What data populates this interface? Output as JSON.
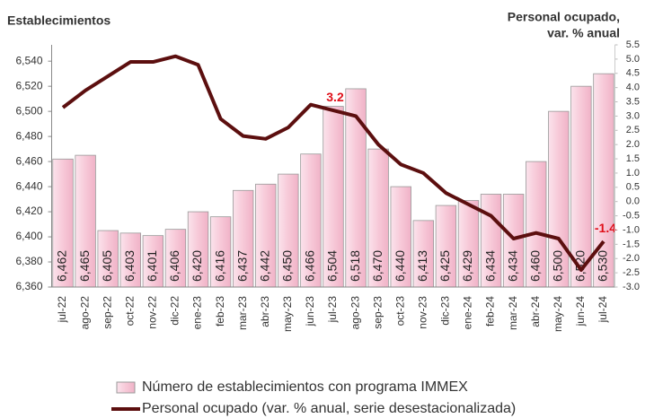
{
  "chart_data": {
    "type": "bar",
    "ylabel": "Establecimientos",
    "y2label": [
      "Personal ocupado,",
      "var.  %  anual"
    ],
    "categories": [
      "jul-22",
      "ago-22",
      "sep-22",
      "oct-22",
      "nov-22",
      "dic-22",
      "ene-23",
      "feb-23",
      "mar-23",
      "abr-23",
      "may-23",
      "jun-23",
      "jul-23",
      "ago-23",
      "sep-23",
      "oct-23",
      "nov-23",
      "dic-23",
      "ene-24",
      "feb-24",
      "mar-24",
      "abr-24",
      "may-24",
      "jun-24",
      "jul-24"
    ],
    "series": [
      {
        "name": "Número de establecimientos con programa IMMEX",
        "type": "bar",
        "color": "#f7c9d8",
        "values": [
          6462,
          6465,
          6405,
          6403,
          6401,
          6406,
          6420,
          6416,
          6437,
          6442,
          6450,
          6466,
          6504,
          6518,
          6470,
          6440,
          6413,
          6425,
          6429,
          6434,
          6434,
          6460,
          6500,
          6520,
          6530
        ],
        "value_labels": [
          "6,462",
          "6,465",
          "6,405",
          "6,403",
          "6,401",
          "6,406",
          "6,420",
          "6,416",
          "6,437",
          "6,442",
          "6,450",
          "6,466",
          "6,504",
          "6,518",
          "6,470",
          "6,440",
          "6,413",
          "6,425",
          "6,429",
          "6,434",
          "6,434",
          "6,460",
          "6,500",
          "6,520",
          "6,530"
        ]
      },
      {
        "name": "Personal ocupado (var. % anual, serie desestacionalizada)",
        "type": "line",
        "axis": "y2",
        "color": "#5c0f0f",
        "values": [
          3.3,
          3.9,
          4.4,
          4.9,
          4.9,
          5.1,
          4.8,
          2.9,
          2.3,
          2.2,
          2.6,
          3.4,
          3.2,
          3.0,
          2.0,
          1.3,
          1.0,
          0.3,
          -0.1,
          -0.5,
          -1.3,
          -1.1,
          -1.3,
          -2.4,
          -1.4
        ],
        "value_labels": [
          null,
          null,
          null,
          null,
          null,
          null,
          null,
          null,
          null,
          null,
          null,
          null,
          "3.2",
          null,
          null,
          null,
          null,
          null,
          null,
          null,
          null,
          null,
          null,
          null,
          "-1.4"
        ]
      }
    ],
    "ylim": [
      6360,
      6553
    ],
    "yticks": [
      {
        "value": 6360,
        "label": "6,360"
      },
      {
        "value": 6380,
        "label": "6,380"
      },
      {
        "value": 6400,
        "label": "6,400"
      },
      {
        "value": 6420,
        "label": "6,420"
      },
      {
        "value": 6440,
        "label": "6,440"
      },
      {
        "value": 6460,
        "label": "6,460"
      },
      {
        "value": 6480,
        "label": "6,480"
      },
      {
        "value": 6500,
        "label": "6,500"
      },
      {
        "value": 6520,
        "label": "6,520"
      },
      {
        "value": 6540,
        "label": "6,540"
      }
    ],
    "y2lim": [
      -3,
      5.5
    ],
    "y2ticks": [
      {
        "value": -3,
        "label": "-3.0"
      },
      -2.5,
      {
        "value": -2,
        "label": "-2.0"
      },
      -1.5,
      {
        "value": -1,
        "label": "-1.0"
      },
      -0.5,
      {
        "value": 0,
        "label": "0.0"
      },
      0.5,
      {
        "value": 1,
        "label": "1.0"
      },
      1.5,
      {
        "value": 2,
        "label": "2.0"
      },
      2.5,
      {
        "value": 3,
        "label": "3.0"
      },
      3.5,
      {
        "value": 4,
        "label": "4.0"
      },
      4.5,
      {
        "value": 5,
        "label": "5.0"
      },
      5.5
    ],
    "grid": false
  }
}
